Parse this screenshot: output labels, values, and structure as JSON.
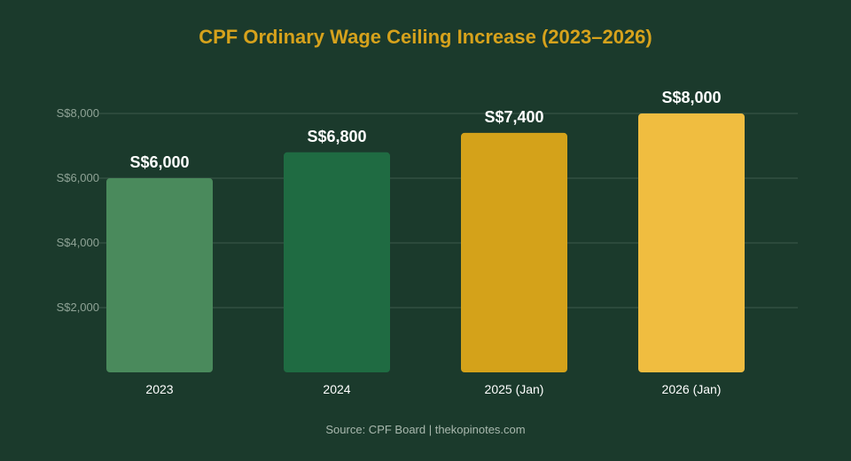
{
  "chart_data": {
    "type": "bar",
    "title": "CPF Ordinary Wage Ceiling Increase (2023–2026)",
    "categories": [
      "2023",
      "2024",
      "2025 (Jan)",
      "2026 (Jan)"
    ],
    "values": [
      6000,
      6800,
      7400,
      8000
    ],
    "value_labels": [
      "S$6,000",
      "S$6,800",
      "S$7,400",
      "S$8,000"
    ],
    "bar_colors": [
      "#4a8a5c",
      "#1f6b42",
      "#d4a21a",
      "#f0bd40"
    ],
    "ylim": [
      0,
      8000
    ],
    "yticks": [
      2000,
      4000,
      6000,
      8000
    ],
    "ytick_labels": [
      "S$2,000",
      "S$4,000",
      "S$6,000",
      "S$8,000"
    ],
    "xlabel": "",
    "ylabel": "",
    "grid": true,
    "legend": "none",
    "source": "Source: CPF Board | thekopinotes.com"
  },
  "colors": {
    "background": "#1b3a2c",
    "title": "#d6a21c",
    "grid": "#3c5b4b",
    "tick_text": "#8fa396",
    "label_text": "#ffffff"
  }
}
